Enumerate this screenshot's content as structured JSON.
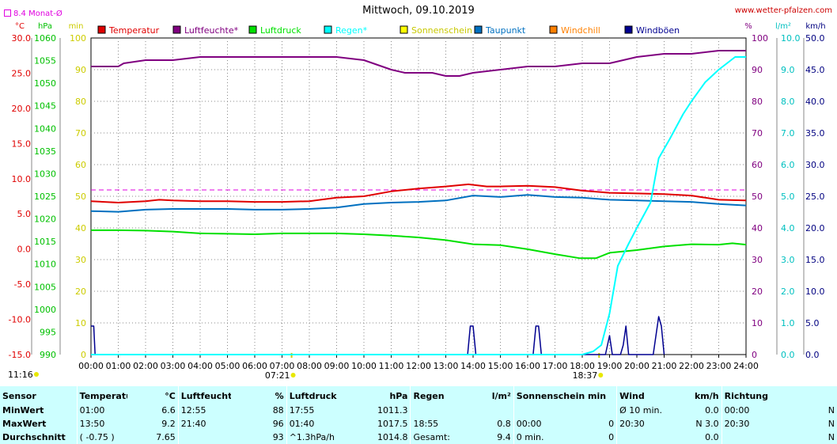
{
  "title": "Mittwoch, 09.10.2019",
  "source": "www.wetter-pfalzen.com",
  "month_avg_label": "8.4 Monat-Ø",
  "colors": {
    "temperature": "#e00000",
    "humidity": "#800080",
    "pressure": "#00e000",
    "rain": "#00ffff",
    "sunshine": "#ffff00",
    "dewpoint": "#0070c0",
    "windchill": "#ff8000",
    "gust": "#000090",
    "month_avg": "#e000e0",
    "table_bg": "#ccffff"
  },
  "sun_markers": {
    "sunrise": "07:21",
    "sunset": "18:37",
    "current_time": "11:16"
  },
  "chart_data": {
    "type": "line",
    "title": "Mittwoch, 09.10.2019",
    "x_unit": "hour",
    "xlim": [
      0,
      24
    ],
    "x_ticks": [
      "00:00",
      "01:00",
      "02:00",
      "03:00",
      "04:00",
      "05:00",
      "06:00",
      "07:00",
      "08:00",
      "09:00",
      "10:00",
      "11:00",
      "12:00",
      "13:00",
      "14:00",
      "15:00",
      "16:00",
      "17:00",
      "18:00",
      "19:00",
      "20:00",
      "21:00",
      "22:00",
      "23:00",
      "24:00"
    ],
    "axes": {
      "temperature": {
        "unit": "°C",
        "range": [
          -15,
          30
        ],
        "ticks": [
          "30.0",
          "25.0",
          "20.0",
          "15.0",
          "10.0",
          "5.0",
          "0.0",
          "-5.0",
          "-10.0",
          "-15.0"
        ]
      },
      "pressure": {
        "unit": "hPa",
        "range": [
          990,
          1060
        ],
        "ticks": [
          "1060",
          "1055",
          "1050",
          "1045",
          "1040",
          "1035",
          "1030",
          "1025",
          "1020",
          "1015",
          "1010",
          "1005",
          "1000",
          "995",
          "990"
        ]
      },
      "sunshine": {
        "unit": "min",
        "range": [
          0,
          100
        ],
        "ticks": [
          "100",
          "90",
          "80",
          "70",
          "60",
          "50",
          "40",
          "30",
          "20",
          "10",
          "0"
        ]
      },
      "humidity": {
        "unit": "%",
        "range": [
          0,
          100
        ],
        "ticks": [
          "100",
          "90",
          "80",
          "70",
          "60",
          "50",
          "40",
          "30",
          "20",
          "10",
          "0"
        ]
      },
      "rain": {
        "unit": "l/m²",
        "range": [
          0,
          10
        ],
        "ticks": [
          "10.0",
          "9.0",
          "8.0",
          "7.0",
          "6.0",
          "5.0",
          "4.0",
          "3.0",
          "2.0",
          "1.0",
          "0.0"
        ]
      },
      "wind": {
        "unit": "km/h",
        "range": [
          0,
          50
        ],
        "ticks": [
          "50.0",
          "45.0",
          "40.0",
          "35.0",
          "30.0",
          "25.0",
          "20.0",
          "15.0",
          "10.0",
          "5.0",
          "0.0"
        ]
      }
    },
    "month_average_temperature": 8.4,
    "legend": [
      "Temperatur",
      "Luftfeuchte*",
      "Luftdruck",
      "Regen*",
      "Sonnenschein",
      "Taupunkt",
      "Windchill",
      "Windböen"
    ],
    "series": [
      {
        "name": "Temperatur",
        "axis": "temperature",
        "x": [
          0,
          1,
          2,
          2.5,
          3,
          4,
          5,
          6,
          7,
          8,
          9,
          10,
          11,
          12,
          13,
          13.83,
          14.5,
          15,
          16,
          17,
          18,
          19,
          20,
          21,
          22,
          23,
          24
        ],
        "y": [
          6.8,
          6.6,
          6.8,
          7.0,
          6.9,
          6.8,
          6.8,
          6.7,
          6.7,
          6.8,
          7.3,
          7.5,
          8.2,
          8.6,
          8.9,
          9.2,
          8.9,
          8.9,
          9.0,
          8.8,
          8.3,
          8.0,
          7.9,
          7.8,
          7.6,
          7.0,
          6.9
        ]
      },
      {
        "name": "Taupunkt",
        "axis": "temperature",
        "x": [
          0,
          1,
          2,
          3,
          4,
          5,
          6,
          7,
          8,
          9,
          10,
          11,
          12,
          13,
          14,
          15,
          16,
          17,
          18,
          19,
          20,
          21,
          22,
          23,
          24
        ],
        "y": [
          5.4,
          5.3,
          5.6,
          5.7,
          5.7,
          5.7,
          5.6,
          5.6,
          5.7,
          5.9,
          6.4,
          6.6,
          6.7,
          6.9,
          7.6,
          7.4,
          7.7,
          7.4,
          7.3,
          7.0,
          6.9,
          6.8,
          6.7,
          6.4,
          6.2
        ]
      },
      {
        "name": "Luftfeuchte*",
        "axis": "humidity",
        "x": [
          0,
          1,
          1.2,
          2,
          3,
          4,
          5,
          6,
          7,
          8,
          9,
          10,
          11,
          11.5,
          12,
          12.5,
          13,
          13.5,
          14,
          15,
          16,
          17,
          18,
          19,
          20,
          21,
          22,
          23,
          24
        ],
        "y": [
          91,
          91,
          92,
          93,
          93,
          94,
          94,
          94,
          94,
          94,
          94,
          93,
          90,
          89,
          89,
          89,
          88,
          88,
          89,
          90,
          91,
          91,
          92,
          92,
          94,
          95,
          95,
          96,
          96
        ]
      },
      {
        "name": "Luftdruck",
        "axis": "pressure",
        "x": [
          0,
          1,
          2,
          3,
          4,
          5,
          6,
          7,
          8,
          9,
          10,
          11,
          12,
          13,
          14,
          15,
          16,
          17,
          17.92,
          18.5,
          19,
          20,
          21,
          22,
          23,
          23.5,
          24
        ],
        "y": [
          1017.5,
          1017.5,
          1017.4,
          1017.2,
          1016.8,
          1016.7,
          1016.6,
          1016.8,
          1016.8,
          1016.8,
          1016.6,
          1016.3,
          1015.9,
          1015.3,
          1014.4,
          1014.2,
          1013.3,
          1012.2,
          1011.3,
          1011.3,
          1012.5,
          1013.1,
          1013.9,
          1014.4,
          1014.3,
          1014.6,
          1014.3
        ]
      },
      {
        "name": "Regen*",
        "axis": "rain",
        "x": [
          0,
          18,
          18.4,
          18.7,
          19,
          19.3,
          19.7,
          20,
          20.5,
          20.8,
          21.2,
          21.7,
          22,
          22.5,
          23,
          23.3,
          23.6,
          24
        ],
        "y": [
          0,
          0,
          0.1,
          0.3,
          1.3,
          2.8,
          3.5,
          4.0,
          4.8,
          6.2,
          6.8,
          7.6,
          8.0,
          8.6,
          9.0,
          9.2,
          9.4,
          9.4
        ]
      },
      {
        "name": "Windböen",
        "axis": "wind",
        "x": [
          0,
          0.03,
          0.1,
          0.15,
          13.8,
          13.9,
          14.0,
          14.1,
          16.2,
          16.3,
          16.4,
          16.5,
          18.85,
          19.0,
          19.1,
          19.4,
          19.5,
          19.6,
          19.7,
          19.85,
          20.6,
          20.8,
          20.9,
          21.0
        ],
        "y": [
          4.5,
          4.5,
          4.5,
          0,
          0,
          4.5,
          4.5,
          0,
          0,
          4.5,
          4.5,
          0,
          0,
          3.0,
          0,
          0,
          1.5,
          4.5,
          0,
          0,
          0,
          6.0,
          4.5,
          0
        ]
      },
      {
        "name": "Windchill",
        "axis": "temperature",
        "x": [],
        "y": []
      },
      {
        "name": "Sonnenschein",
        "axis": "sunshine",
        "x": [],
        "y": []
      }
    ]
  },
  "stats": {
    "headers": {
      "sensor": "Sensor",
      "temperature": "Temperatur",
      "temp_unit": "°C",
      "humidity": "Luftfeuchte",
      "hum_unit": "%",
      "pressure": "Luftdruck",
      "press_unit": "hPa",
      "rain": "Regen",
      "rain_unit": "l/m²",
      "sun": "Sonnenschein min",
      "wind": "Wind",
      "wind_unit": "km/h",
      "direction": "Richtung"
    },
    "rows": [
      {
        "label": "MinWert",
        "temp_time": "01:00",
        "temp_val": "6.6",
        "hum_time": "12:55",
        "hum_val": "88",
        "press_time": "17:55",
        "press_val": "1011.3",
        "rain_time": "",
        "rain_val": "",
        "sun_time": "",
        "sun_val": "",
        "wind_time": "Ø 10 min.",
        "wind_val": "0.0",
        "dir_time": "00:00",
        "dir_val": "N"
      },
      {
        "label": "MaxWert",
        "temp_time": "13:50",
        "temp_val": "9.2",
        "hum_time": "21:40",
        "hum_val": "96",
        "press_time": "01:40",
        "press_val": "1017.5",
        "rain_time": "18:55",
        "rain_val": "0.8",
        "sun_time": "00:00",
        "sun_val": "0",
        "wind_time": "20:30",
        "wind_val": "N 3.0",
        "dir_time": "20:30",
        "dir_val": "N"
      },
      {
        "label": "Durchschnitt",
        "temp_time": "( -0.75 )",
        "temp_val": "7.65",
        "hum_time": "",
        "hum_val": "93",
        "press_time": "^1.3hPa/h",
        "press_val": "1014.8",
        "rain_time": "Gesamt:",
        "rain_val": "9.4",
        "sun_time": "0 min.",
        "sun_val": "0",
        "wind_time": "",
        "wind_val": "0.0",
        "dir_time": "",
        "dir_val": "N"
      }
    ]
  }
}
